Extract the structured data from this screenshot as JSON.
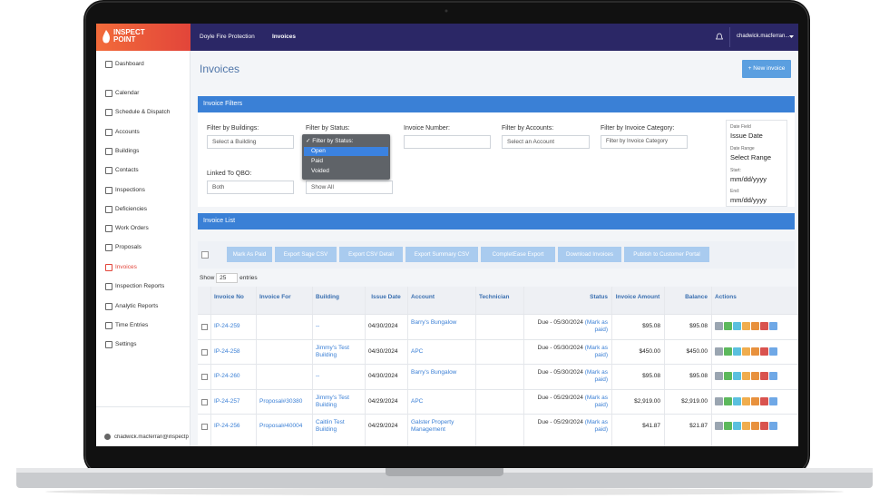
{
  "header": {
    "logo_line1": "INSPECT",
    "logo_line2": "POINT",
    "company": "Doyle Fire Protection",
    "breadcrumb": "Invoices",
    "user": "chadwick.macferran..."
  },
  "sidebar": {
    "items": [
      "Dashboard",
      "Calendar",
      "Schedule & Dispatch",
      "Accounts",
      "Buildings",
      "Contacts",
      "Inspections",
      "Deficiencies",
      "Work Orders",
      "Proposals",
      "Invoices",
      "Inspection Reports",
      "Analytic Reports",
      "Time Entries",
      "Settings"
    ],
    "active_item": 10,
    "user": "chadwick.macferran@inspectp"
  },
  "page": {
    "title": "Invoices",
    "new_button": "+ New invoice"
  },
  "filters": {
    "heading": "Invoice Filters",
    "buildings_label": "Filter by Buildings:",
    "buildings_value": "Select a Building",
    "status_label": "Filter by Status:",
    "status_options": [
      "✓ Filter by Status:",
      "Open",
      "Paid",
      "Voided"
    ],
    "status_highlight": 1,
    "number_label": "Invoice Number:",
    "accounts_label": "Filter by Accounts:",
    "accounts_value": "Select an Account",
    "category_label": "Filter by Invoice Category:",
    "category_value": "Filter by Invoice Category",
    "qbo_label": "Linked To QBO:",
    "qbo_value": "Both",
    "show_value": "Show All",
    "date_field_label": "Date Field",
    "date_field_value": "Issue Date",
    "date_range_label": "Date Range",
    "date_range_value": "Select Range",
    "start_label": "Start:",
    "start_value": "mm/dd/yyyy",
    "end_label": "End:",
    "end_value": "mm/dd/yyyy"
  },
  "list": {
    "heading": "Invoice List",
    "buttons": [
      "Mark As Paid",
      "Export Sage CSV",
      "Export CSV Detail",
      "Export Summary CSV",
      "CompletEase Export",
      "Download Invoices",
      "Publish to Customer Portal"
    ],
    "show_label": "Show",
    "show_value": "25",
    "entries_label": "entries",
    "columns": [
      "Invoice No",
      "Invoice For",
      "Building",
      "Issue Date",
      "Account",
      "Technician",
      "Status",
      "Invoice Amount",
      "Balance",
      "Actions"
    ],
    "rows": [
      {
        "no": "IP-24-259",
        "building": "--",
        "date": "04/30/2024",
        "account": "Barry's Bungalow",
        "status": "Due - 05/30/2024",
        "mark": "(Mark as paid)",
        "amount": "$95.08",
        "balance": "$95.08"
      },
      {
        "no": "IP-24-258",
        "building": "Jimmy's Test Building",
        "date": "04/30/2024",
        "account": "APC",
        "status": "Due - 05/30/2024",
        "mark": "(Mark as paid)",
        "amount": "$450.00",
        "balance": "$450.00"
      },
      {
        "no": "IP-24-260",
        "building": "--",
        "date": "04/30/2024",
        "account": "Barry's Bungalow",
        "status": "Due - 05/30/2024",
        "mark": "(Mark as paid)",
        "amount": "$95.08",
        "balance": "$95.08"
      },
      {
        "no": "IP-24-257",
        "for": "Proposal#30380",
        "building": "Jimmy's Test Building",
        "date": "04/29/2024",
        "account": "APC",
        "status": "Due - 05/29/2024",
        "mark": "(Mark as paid)",
        "amount": "$2,919.00",
        "balance": "$2,919.00"
      },
      {
        "no": "IP-24-256",
        "for": "Proposal#40004",
        "building": "Caitlin Test Building",
        "date": "04/29/2024",
        "account": "Galster Property Management",
        "status": "Due - 05/29/2024",
        "mark": "(Mark as paid)",
        "amount": "$41.87",
        "balance": "$21.87"
      }
    ]
  }
}
